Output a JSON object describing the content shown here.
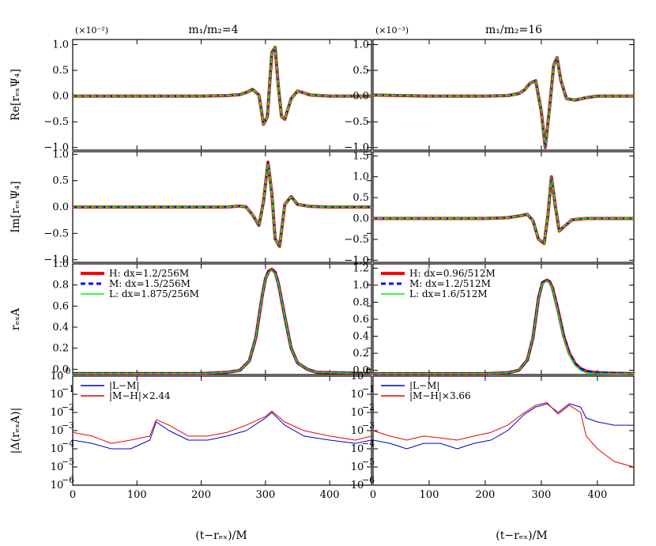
{
  "figure": {
    "xlabel": "(t−rₑₓ)/M"
  },
  "columns": [
    {
      "title": "m₁/m₂=4",
      "scale": "(×10⁻²)"
    },
    {
      "title": "m₁/m₂=16",
      "scale": "(×10⁻³)"
    }
  ],
  "row_labels": [
    "Re[rₑₓΨ₄]",
    "Im[rₑₓΨ₄]",
    "rₑₓA",
    "|Δ(rₑₓA)|"
  ],
  "colors": {
    "H": "#ff0000",
    "M": "#0000ff",
    "L": "#00ee00",
    "orange": "#ff8c00",
    "diff_LM": "#0000cc",
    "diff_MH": "#ee0000"
  },
  "chart_data": [
    {
      "type": "line",
      "panel": "Re[r_ex Psi_4], m1/m2=4",
      "xlim": [
        0,
        465
      ],
      "ylim": [
        -1.05,
        1.1
      ],
      "yticks": [
        -1.0,
        -0.5,
        0.0,
        0.5,
        1.0
      ],
      "x": [
        0,
        100,
        200,
        240,
        260,
        270,
        280,
        290,
        297,
        303,
        310,
        315,
        320,
        325,
        330,
        340,
        350,
        370,
        400,
        465
      ],
      "series": [
        {
          "values": [
            0,
            0,
            0,
            0.01,
            0.03,
            0.07,
            0.13,
            0.02,
            -0.55,
            -0.4,
            0.85,
            0.95,
            0.2,
            -0.4,
            -0.45,
            -0.05,
            0.1,
            0.02,
            0,
            0
          ]
        }
      ]
    },
    {
      "type": "line",
      "panel": "Re[r_ex Psi_4], m1/m2=16",
      "xlim": [
        0,
        465
      ],
      "ylim": [
        -1.05,
        1.1
      ],
      "yticks": [
        -1.0,
        -0.5,
        0.0,
        0.5,
        1.0
      ],
      "x": [
        0,
        100,
        200,
        240,
        260,
        270,
        280,
        290,
        300,
        307,
        315,
        322,
        328,
        335,
        345,
        360,
        380,
        400,
        465
      ],
      "series": [
        {
          "values": [
            0.02,
            0,
            0,
            0.01,
            0.05,
            0.12,
            0.25,
            0.3,
            -0.3,
            -1.0,
            -0.2,
            0.6,
            0.75,
            0.3,
            -0.05,
            -0.08,
            -0.03,
            0,
            0
          ]
        }
      ]
    },
    {
      "type": "line",
      "panel": "Im[r_ex Psi_4], m1/m2=4",
      "xlim": [
        0,
        465
      ],
      "ylim": [
        -1.05,
        1.05
      ],
      "yticks": [
        -1.0,
        -0.5,
        0.0,
        0.5,
        1.0
      ],
      "x": [
        0,
        100,
        200,
        240,
        260,
        270,
        280,
        290,
        297,
        304,
        310,
        315,
        322,
        330,
        340,
        350,
        370,
        400,
        465
      ],
      "series": [
        {
          "values": [
            0,
            0,
            0,
            0,
            0.02,
            0,
            -0.15,
            -0.35,
            0.1,
            0.85,
            0.25,
            -0.6,
            -0.75,
            0.05,
            0.2,
            0.05,
            0.01,
            0,
            0
          ]
        }
      ]
    },
    {
      "type": "line",
      "panel": "Im[r_ex Psi_4], m1/m2=16",
      "xlim": [
        0,
        465
      ],
      "ylim": [
        -1.05,
        1.6
      ],
      "yticks": [
        -1.0,
        -0.5,
        0.0,
        0.5,
        1.0,
        1.5
      ],
      "x": [
        0,
        100,
        200,
        240,
        260,
        275,
        285,
        295,
        305,
        312,
        318,
        325,
        332,
        340,
        355,
        380,
        465
      ],
      "series": [
        {
          "values": [
            0,
            0,
            0,
            0.02,
            0.06,
            0.1,
            -0.05,
            -0.5,
            -0.6,
            0.1,
            1.0,
            0.3,
            -0.3,
            -0.2,
            -0.03,
            0,
            0
          ]
        }
      ]
    },
    {
      "type": "line",
      "panel": "r_ex A, m1/m2=4",
      "xlim": [
        0,
        465
      ],
      "ylim": [
        -0.05,
        1.0
      ],
      "yticks": [
        0.0,
        0.2,
        0.4,
        0.6,
        0.8,
        1.0
      ],
      "x": [
        0,
        100,
        200,
        240,
        260,
        275,
        285,
        295,
        300,
        305,
        310,
        315,
        320,
        330,
        340,
        350,
        365,
        380,
        465
      ],
      "series": [
        {
          "name": "H: dx=1.2/256M",
          "values": [
            -0.04,
            -0.04,
            -0.04,
            -0.03,
            -0.01,
            0.08,
            0.3,
            0.7,
            0.86,
            0.93,
            0.95,
            0.92,
            0.82,
            0.5,
            0.2,
            0.06,
            0.0,
            -0.03,
            -0.04
          ]
        },
        {
          "name": "M: dx=1.5/256M",
          "values": [
            -0.04,
            -0.04,
            -0.04,
            -0.03,
            -0.01,
            0.08,
            0.3,
            0.7,
            0.86,
            0.93,
            0.94,
            0.92,
            0.82,
            0.5,
            0.2,
            0.06,
            0.0,
            -0.03,
            -0.04
          ]
        },
        {
          "name": "L: dx=1.875/256M",
          "values": [
            -0.04,
            -0.04,
            -0.04,
            -0.03,
            -0.01,
            0.08,
            0.3,
            0.7,
            0.86,
            0.92,
            0.94,
            0.91,
            0.82,
            0.5,
            0.2,
            0.06,
            0.0,
            -0.03,
            -0.04
          ]
        }
      ]
    },
    {
      "type": "line",
      "panel": "r_ex A, m1/m2=16",
      "xlim": [
        0,
        465
      ],
      "ylim": [
        -0.05,
        1.25
      ],
      "yticks": [
        0.0,
        0.2,
        0.4,
        0.6,
        0.8,
        1.0,
        1.2
      ],
      "x": [
        0,
        100,
        200,
        240,
        260,
        275,
        285,
        295,
        302,
        310,
        315,
        320,
        330,
        340,
        350,
        360,
        370,
        380,
        400,
        465
      ],
      "series": [
        {
          "name": "H: dx=0.96/512M",
          "values": [
            -0.04,
            -0.04,
            -0.04,
            -0.03,
            0.0,
            0.12,
            0.38,
            0.85,
            1.03,
            1.06,
            1.04,
            0.97,
            0.7,
            0.4,
            0.2,
            0.08,
            0.02,
            -0.01,
            -0.03,
            -0.04
          ]
        },
        {
          "name": "M: dx=1.2/512M",
          "values": [
            -0.04,
            -0.04,
            -0.04,
            -0.03,
            0.0,
            0.12,
            0.38,
            0.85,
            1.03,
            1.06,
            1.04,
            0.97,
            0.7,
            0.4,
            0.2,
            0.08,
            0.02,
            -0.01,
            -0.03,
            -0.04
          ]
        },
        {
          "name": "L: dx=1.6/512M",
          "values": [
            -0.04,
            -0.04,
            -0.04,
            -0.03,
            0.0,
            0.12,
            0.38,
            0.84,
            1.02,
            1.05,
            1.03,
            0.96,
            0.68,
            0.38,
            0.18,
            0.06,
            0.0,
            -0.03,
            -0.04,
            -0.04
          ]
        }
      ]
    },
    {
      "type": "line",
      "panel": "|Delta(r_ex A)|, m1/m2=4",
      "log_y": true,
      "xlim": [
        0,
        465
      ],
      "ylim": [
        1e-06,
        1.0
      ],
      "yticks_exp": [
        -6,
        -5,
        -4,
        -3,
        -2,
        -1,
        0
      ],
      "x": [
        0,
        30,
        60,
        90,
        120,
        130,
        150,
        180,
        210,
        240,
        270,
        300,
        310,
        330,
        360,
        400,
        440,
        465
      ],
      "series": [
        {
          "name": "|L−M|",
          "values": [
            0.0003,
            0.0002,
            0.0001,
            0.0001,
            0.0003,
            0.003,
            0.001,
            0.0003,
            0.0003,
            0.0005,
            0.001,
            0.005,
            0.01,
            0.002,
            0.0005,
            0.0003,
            0.0002,
            0.0003
          ]
        },
        {
          "name": "|M−H|×2.44",
          "values": [
            0.0008,
            0.0005,
            0.0002,
            0.0003,
            0.0005,
            0.004,
            0.002,
            0.0005,
            0.0005,
            0.0008,
            0.002,
            0.006,
            0.012,
            0.003,
            0.001,
            0.0005,
            0.0003,
            0.0005
          ]
        }
      ]
    },
    {
      "type": "line",
      "panel": "|Delta(r_ex A)|, m1/m2=16",
      "log_y": true,
      "xlim": [
        0,
        465
      ],
      "ylim": [
        1e-06,
        1.0
      ],
      "yticks_exp": [
        -6,
        -5,
        -4,
        -3,
        -2,
        -1,
        0
      ],
      "x": [
        0,
        30,
        60,
        90,
        120,
        150,
        180,
        210,
        240,
        270,
        290,
        310,
        330,
        350,
        370,
        380,
        400,
        430,
        465
      ],
      "series": [
        {
          "name": "|L−M|",
          "values": [
            0.0003,
            0.0002,
            0.0001,
            0.0002,
            0.0002,
            0.0001,
            0.0002,
            0.0003,
            0.001,
            0.008,
            0.02,
            0.03,
            0.01,
            0.03,
            0.02,
            0.005,
            0.003,
            0.002,
            0.002
          ]
        },
        {
          "name": "|M−H|×3.66",
          "values": [
            0.001,
            0.0005,
            0.0003,
            0.0005,
            0.0004,
            0.0003,
            0.0005,
            0.0008,
            0.002,
            0.01,
            0.025,
            0.035,
            0.008,
            0.025,
            0.01,
            0.0005,
            0.0001,
            2e-05,
            1e-05
          ]
        }
      ]
    }
  ]
}
